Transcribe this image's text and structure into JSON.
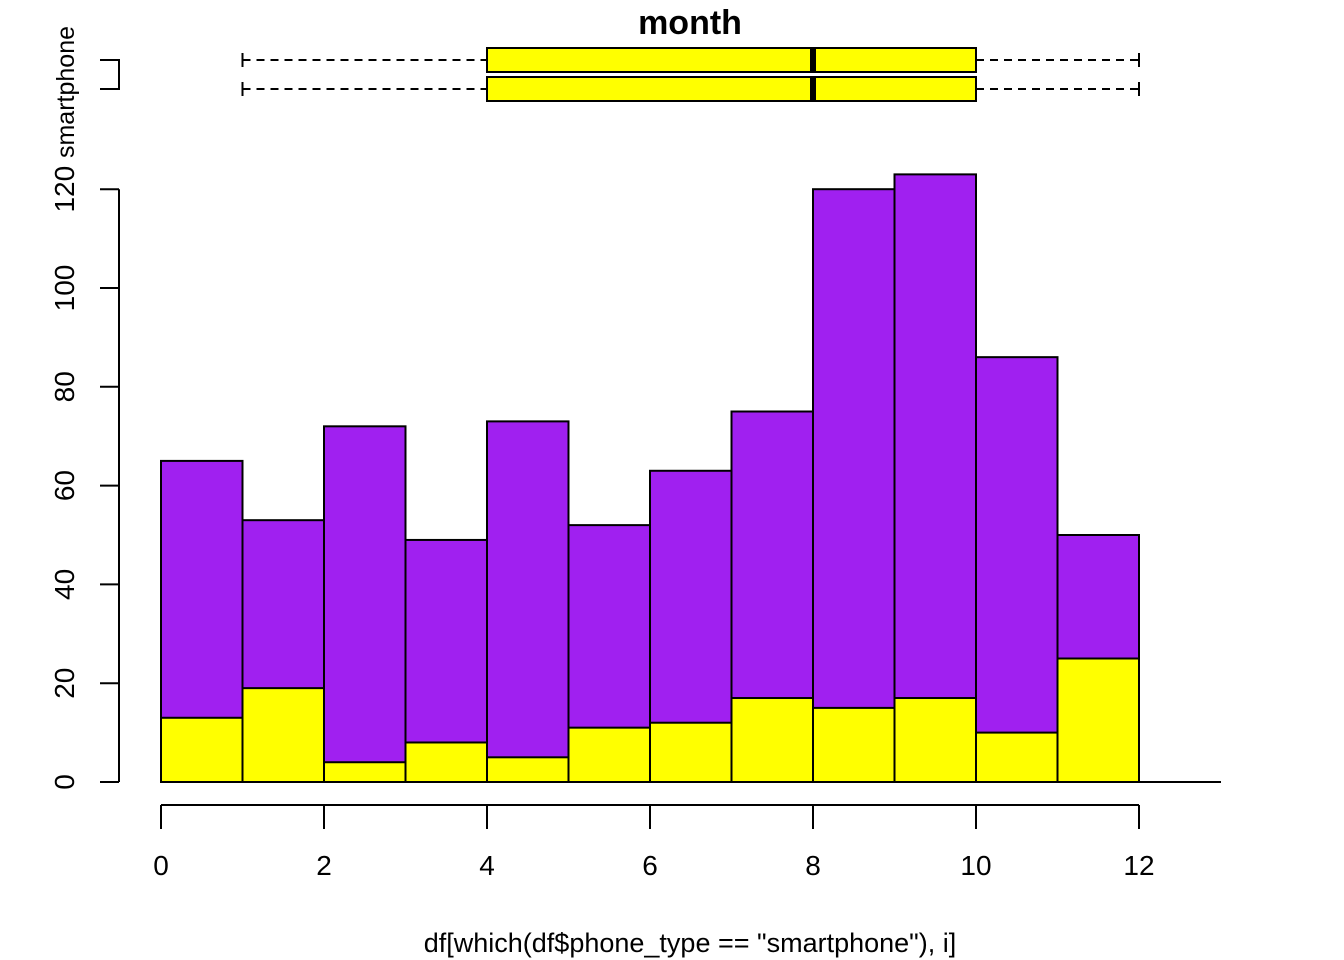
{
  "chart_data": {
    "type": "bar",
    "title": "month",
    "xlabel": "df[which(df$phone_type == \"smartphone\"), i]",
    "ylabel": "",
    "group_label": "smartphone",
    "x_ticks": [
      0,
      2,
      4,
      6,
      8,
      10,
      12
    ],
    "y_ticks": [
      0,
      20,
      40,
      60,
      80,
      100,
      120
    ],
    "x_range": [
      0,
      13
    ],
    "y_range": [
      0,
      120
    ],
    "bin_edges": [
      0,
      1,
      2,
      3,
      4,
      5,
      6,
      7,
      8,
      9,
      10,
      11,
      12
    ],
    "stacked": false,
    "series": [
      {
        "values": [
          65,
          53,
          72,
          49,
          73,
          52,
          63,
          75,
          120,
          123,
          86,
          50
        ],
        "color": "#A020F0"
      },
      {
        "values": [
          13,
          19,
          4,
          8,
          5,
          11,
          12,
          17,
          15,
          17,
          10,
          25
        ],
        "color": "#FFFF00"
      }
    ],
    "boxplots": [
      {
        "min": 1,
        "q1": 4,
        "median": 8,
        "q3": 10,
        "max": 12,
        "color": "#FFFF00"
      },
      {
        "min": 1,
        "q1": 4,
        "median": 8,
        "q3": 10,
        "max": 12,
        "color": "#FFFF00"
      }
    ]
  }
}
